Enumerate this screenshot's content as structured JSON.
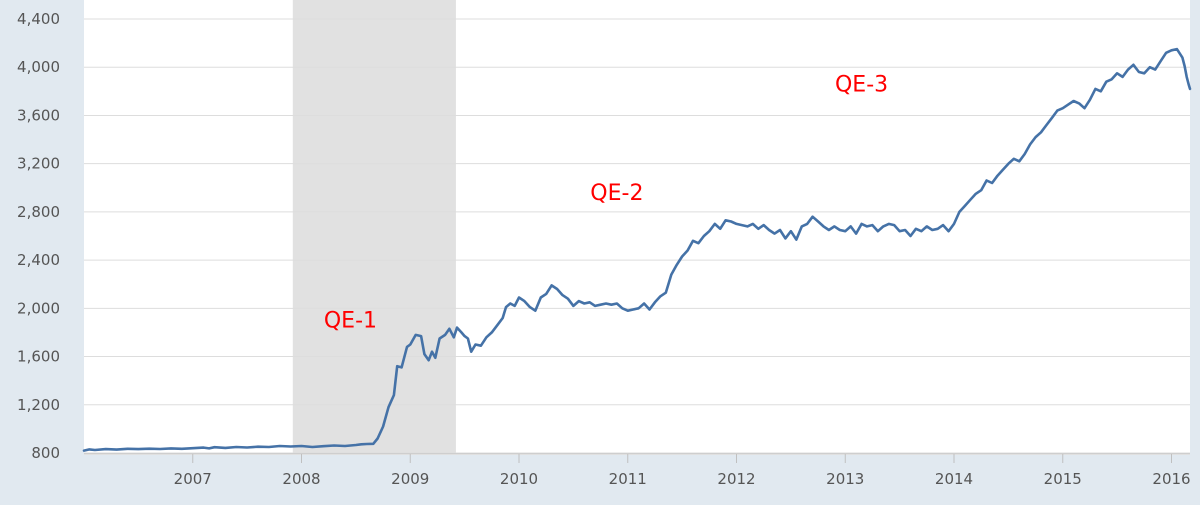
{
  "chart_data": {
    "type": "line",
    "title": "",
    "xlabel": "",
    "ylabel": "",
    "xlim": [
      2006.0,
      2016.17
    ],
    "ylim": [
      800,
      4400
    ],
    "y_ticks": [
      800,
      1200,
      1600,
      2000,
      2400,
      2800,
      3200,
      3600,
      4000,
      4400
    ],
    "y_tick_labels": [
      "800",
      "1,200",
      "1,600",
      "2,000",
      "2,400",
      "2,800",
      "3,200",
      "3,600",
      "4,000",
      "4,400"
    ],
    "x_ticks": [
      2007,
      2008,
      2009,
      2010,
      2011,
      2012,
      2013,
      2014,
      2015,
      2016
    ],
    "x_tick_labels": [
      "2007",
      "2008",
      "2009",
      "2010",
      "2011",
      "2012",
      "2013",
      "2014",
      "2015",
      "2016"
    ],
    "grid": true,
    "recession": {
      "start": 2007.92,
      "end": 2009.42
    },
    "annotations": [
      {
        "text": "QE-1",
        "x": 2008.45,
        "y": 1840
      },
      {
        "text": "QE-2",
        "x": 2010.9,
        "y": 2900
      },
      {
        "text": "QE-3",
        "x": 2013.15,
        "y": 3800
      }
    ],
    "series": [
      {
        "values": [
          [
            2006.0,
            820
          ],
          [
            2006.05,
            830
          ],
          [
            2006.1,
            825
          ],
          [
            2006.2,
            832
          ],
          [
            2006.3,
            828
          ],
          [
            2006.4,
            835
          ],
          [
            2006.5,
            832
          ],
          [
            2006.6,
            836
          ],
          [
            2006.7,
            833
          ],
          [
            2006.8,
            838
          ],
          [
            2006.9,
            835
          ],
          [
            2007.0,
            840
          ],
          [
            2007.1,
            845
          ],
          [
            2007.15,
            838
          ],
          [
            2007.2,
            848
          ],
          [
            2007.3,
            842
          ],
          [
            2007.4,
            850
          ],
          [
            2007.5,
            846
          ],
          [
            2007.6,
            852
          ],
          [
            2007.7,
            850
          ],
          [
            2007.8,
            858
          ],
          [
            2007.9,
            854
          ],
          [
            2008.0,
            858
          ],
          [
            2008.1,
            850
          ],
          [
            2008.2,
            856
          ],
          [
            2008.3,
            862
          ],
          [
            2008.4,
            858
          ],
          [
            2008.5,
            866
          ],
          [
            2008.55,
            872
          ],
          [
            2008.6,
            875
          ],
          [
            2008.66,
            876
          ],
          [
            2008.7,
            920
          ],
          [
            2008.75,
            1020
          ],
          [
            2008.8,
            1180
          ],
          [
            2008.85,
            1280
          ],
          [
            2008.88,
            1520
          ],
          [
            2008.92,
            1510
          ],
          [
            2008.97,
            1680
          ],
          [
            2009.0,
            1700
          ],
          [
            2009.05,
            1780
          ],
          [
            2009.1,
            1770
          ],
          [
            2009.13,
            1620
          ],
          [
            2009.17,
            1570
          ],
          [
            2009.2,
            1640
          ],
          [
            2009.23,
            1590
          ],
          [
            2009.27,
            1750
          ],
          [
            2009.32,
            1780
          ],
          [
            2009.36,
            1830
          ],
          [
            2009.4,
            1760
          ],
          [
            2009.43,
            1840
          ],
          [
            2009.47,
            1800
          ],
          [
            2009.5,
            1770
          ],
          [
            2009.53,
            1750
          ],
          [
            2009.56,
            1640
          ],
          [
            2009.6,
            1700
          ],
          [
            2009.65,
            1690
          ],
          [
            2009.7,
            1760
          ],
          [
            2009.75,
            1800
          ],
          [
            2009.8,
            1860
          ],
          [
            2009.85,
            1920
          ],
          [
            2009.88,
            2010
          ],
          [
            2009.92,
            2040
          ],
          [
            2009.96,
            2020
          ],
          [
            2010.0,
            2090
          ],
          [
            2010.05,
            2060
          ],
          [
            2010.1,
            2010
          ],
          [
            2010.15,
            1980
          ],
          [
            2010.2,
            2090
          ],
          [
            2010.25,
            2120
          ],
          [
            2010.3,
            2190
          ],
          [
            2010.35,
            2160
          ],
          [
            2010.4,
            2110
          ],
          [
            2010.45,
            2080
          ],
          [
            2010.5,
            2020
          ],
          [
            2010.55,
            2060
          ],
          [
            2010.6,
            2040
          ],
          [
            2010.65,
            2050
          ],
          [
            2010.7,
            2020
          ],
          [
            2010.75,
            2030
          ],
          [
            2010.8,
            2040
          ],
          [
            2010.85,
            2030
          ],
          [
            2010.9,
            2040
          ],
          [
            2010.95,
            2000
          ],
          [
            2011.0,
            1980
          ],
          [
            2011.05,
            1990
          ],
          [
            2011.1,
            2000
          ],
          [
            2011.15,
            2040
          ],
          [
            2011.2,
            1990
          ],
          [
            2011.25,
            2050
          ],
          [
            2011.3,
            2100
          ],
          [
            2011.35,
            2130
          ],
          [
            2011.4,
            2280
          ],
          [
            2011.45,
            2360
          ],
          [
            2011.5,
            2430
          ],
          [
            2011.55,
            2480
          ],
          [
            2011.6,
            2560
          ],
          [
            2011.65,
            2540
          ],
          [
            2011.7,
            2600
          ],
          [
            2011.75,
            2640
          ],
          [
            2011.8,
            2700
          ],
          [
            2011.85,
            2660
          ],
          [
            2011.9,
            2730
          ],
          [
            2011.95,
            2720
          ],
          [
            2012.0,
            2700
          ],
          [
            2012.05,
            2690
          ],
          [
            2012.1,
            2680
          ],
          [
            2012.15,
            2700
          ],
          [
            2012.2,
            2660
          ],
          [
            2012.25,
            2690
          ],
          [
            2012.3,
            2650
          ],
          [
            2012.35,
            2620
          ],
          [
            2012.4,
            2650
          ],
          [
            2012.45,
            2580
          ],
          [
            2012.5,
            2640
          ],
          [
            2012.55,
            2570
          ],
          [
            2012.6,
            2680
          ],
          [
            2012.65,
            2700
          ],
          [
            2012.7,
            2760
          ],
          [
            2012.75,
            2720
          ],
          [
            2012.8,
            2680
          ],
          [
            2012.85,
            2650
          ],
          [
            2012.9,
            2680
          ],
          [
            2012.95,
            2650
          ],
          [
            2013.0,
            2640
          ],
          [
            2013.05,
            2680
          ],
          [
            2013.1,
            2620
          ],
          [
            2013.15,
            2700
          ],
          [
            2013.2,
            2680
          ],
          [
            2013.25,
            2690
          ],
          [
            2013.3,
            2640
          ],
          [
            2013.35,
            2680
          ],
          [
            2013.4,
            2700
          ],
          [
            2013.45,
            2690
          ],
          [
            2013.5,
            2640
          ],
          [
            2013.55,
            2650
          ],
          [
            2013.6,
            2600
          ],
          [
            2013.65,
            2660
          ],
          [
            2013.7,
            2640
          ],
          [
            2013.75,
            2680
          ],
          [
            2013.8,
            2650
          ],
          [
            2013.85,
            2660
          ],
          [
            2013.9,
            2690
          ],
          [
            2013.95,
            2640
          ],
          [
            2014.0,
            2700
          ],
          [
            2014.05,
            2800
          ],
          [
            2014.1,
            2850
          ],
          [
            2014.15,
            2900
          ],
          [
            2014.2,
            2950
          ],
          [
            2014.25,
            2980
          ],
          [
            2014.3,
            3060
          ],
          [
            2014.35,
            3040
          ],
          [
            2014.4,
            3100
          ],
          [
            2014.45,
            3150
          ],
          [
            2014.5,
            3200
          ],
          [
            2014.55,
            3240
          ],
          [
            2014.6,
            3220
          ],
          [
            2014.65,
            3280
          ],
          [
            2014.7,
            3360
          ],
          [
            2014.75,
            3420
          ],
          [
            2014.8,
            3460
          ],
          [
            2014.85,
            3520
          ],
          [
            2014.9,
            3580
          ],
          [
            2014.95,
            3640
          ],
          [
            2015.0,
            3660
          ],
          [
            2015.05,
            3690
          ],
          [
            2015.1,
            3720
          ],
          [
            2015.15,
            3700
          ],
          [
            2015.2,
            3660
          ],
          [
            2015.25,
            3730
          ],
          [
            2015.3,
            3820
          ],
          [
            2015.35,
            3800
          ],
          [
            2015.4,
            3880
          ],
          [
            2015.45,
            3900
          ],
          [
            2015.5,
            3950
          ],
          [
            2015.55,
            3920
          ],
          [
            2015.6,
            3980
          ],
          [
            2015.65,
            4020
          ],
          [
            2015.7,
            3960
          ],
          [
            2015.75,
            3950
          ],
          [
            2015.8,
            4000
          ],
          [
            2015.85,
            3980
          ],
          [
            2015.9,
            4050
          ],
          [
            2015.95,
            4120
          ],
          [
            2016.0,
            4140
          ],
          [
            2016.05,
            4150
          ],
          [
            2016.1,
            4080
          ],
          [
            2016.12,
            4010
          ],
          [
            2016.14,
            3920
          ],
          [
            2016.16,
            3850
          ],
          [
            2016.17,
            3820
          ]
        ]
      }
    ],
    "colors": {
      "line": "#4572a7",
      "recession": "#e1e1e1",
      "annotation": "#ff0000",
      "grid": "#dddddd",
      "background": "#ffffff"
    }
  }
}
